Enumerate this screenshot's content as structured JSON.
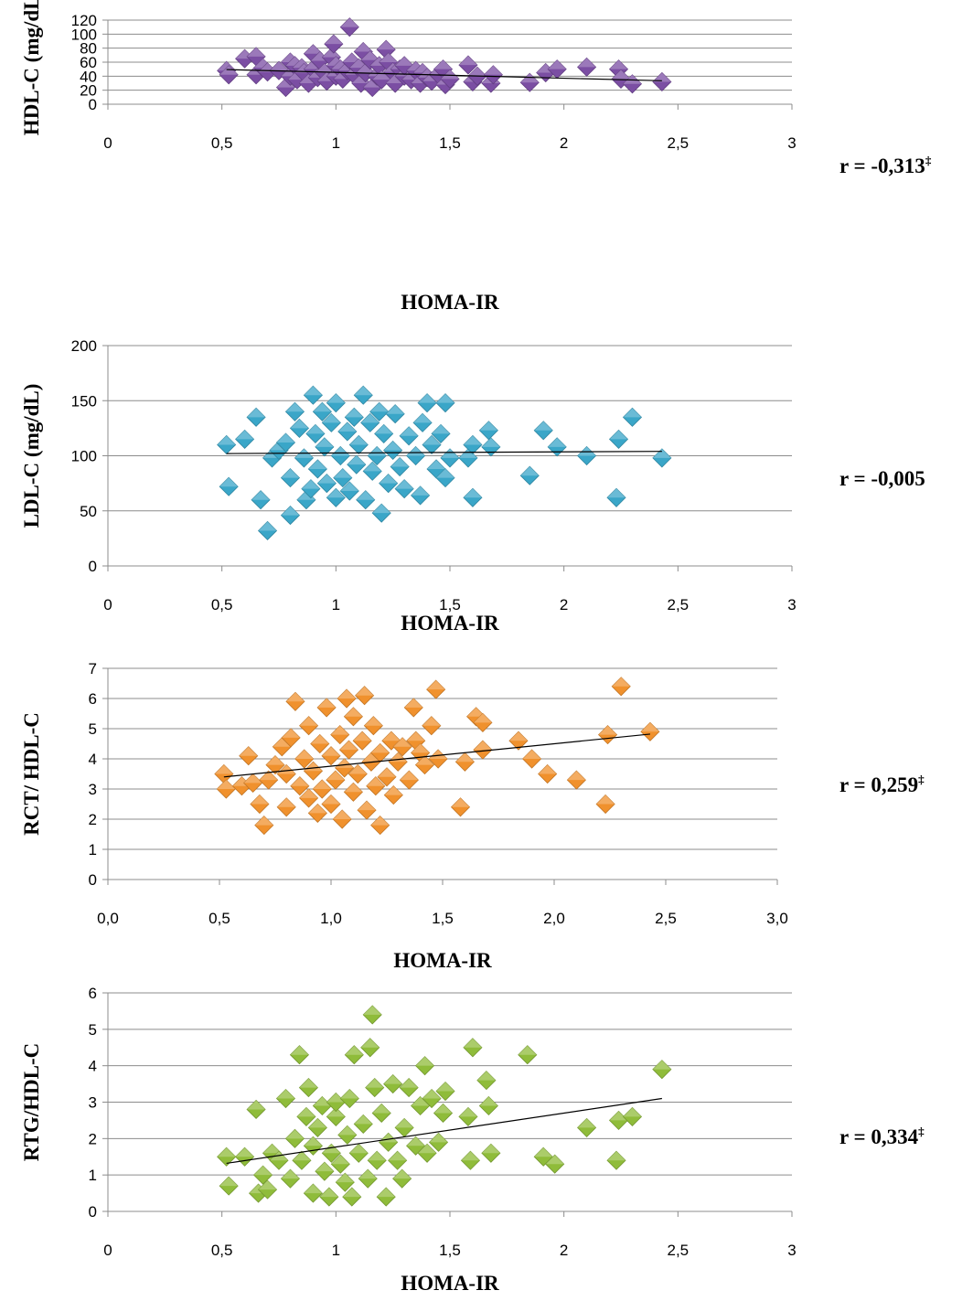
{
  "chart_data": [
    {
      "type": "scatter",
      "xlabel": "HOMA-IR",
      "ylabel": "HDL-C (mg/dL)",
      "xlim": [
        0,
        3
      ],
      "ylim": [
        0,
        120
      ],
      "x_ticks": [
        "0",
        "0,5",
        "1",
        "1,5",
        "2",
        "2,5",
        "3"
      ],
      "y_ticks": [
        "0",
        "20",
        "40",
        "60",
        "80",
        "100",
        "120"
      ],
      "grid": "horizontal",
      "color": "#7b4ea3",
      "trendline": {
        "x": [
          0.52,
          2.43
        ],
        "y": [
          49.5,
          33.5
        ]
      },
      "annotation": {
        "text": "r = -0,313",
        "mark": "‡"
      },
      "points": [
        [
          0.52,
          48
        ],
        [
          0.53,
          42
        ],
        [
          0.6,
          65
        ],
        [
          0.65,
          68
        ],
        [
          0.65,
          42
        ],
        [
          0.68,
          52
        ],
        [
          0.7,
          46
        ],
        [
          0.75,
          48
        ],
        [
          0.78,
          24
        ],
        [
          0.8,
          60
        ],
        [
          0.8,
          40
        ],
        [
          0.82,
          55
        ],
        [
          0.83,
          35
        ],
        [
          0.85,
          52
        ],
        [
          0.86,
          45
        ],
        [
          0.88,
          30
        ],
        [
          0.9,
          72
        ],
        [
          0.9,
          50
        ],
        [
          0.92,
          38
        ],
        [
          0.93,
          62
        ],
        [
          0.95,
          45
        ],
        [
          0.96,
          33
        ],
        [
          0.98,
          67
        ],
        [
          0.99,
          86
        ],
        [
          1.0,
          55
        ],
        [
          1.0,
          40
        ],
        [
          1.02,
          50
        ],
        [
          1.03,
          36
        ],
        [
          1.05,
          48
        ],
        [
          1.06,
          110
        ],
        [
          1.07,
          60
        ],
        [
          1.08,
          42
        ],
        [
          1.1,
          52
        ],
        [
          1.11,
          30
        ],
        [
          1.12,
          75
        ],
        [
          1.13,
          45
        ],
        [
          1.15,
          63
        ],
        [
          1.16,
          24
        ],
        [
          1.18,
          40
        ],
        [
          1.19,
          55
        ],
        [
          1.2,
          35
        ],
        [
          1.22,
          78
        ],
        [
          1.23,
          60
        ],
        [
          1.25,
          46
        ],
        [
          1.26,
          30
        ],
        [
          1.28,
          50
        ],
        [
          1.3,
          40
        ],
        [
          1.3,
          55
        ],
        [
          1.33,
          35
        ],
        [
          1.35,
          48
        ],
        [
          1.37,
          30
        ],
        [
          1.38,
          45
        ],
        [
          1.4,
          38
        ],
        [
          1.42,
          33
        ],
        [
          1.45,
          42
        ],
        [
          1.47,
          50
        ],
        [
          1.48,
          28
        ],
        [
          1.5,
          36
        ],
        [
          1.58,
          56
        ],
        [
          1.6,
          32
        ],
        [
          1.62,
          40
        ],
        [
          1.68,
          30
        ],
        [
          1.69,
          42
        ],
        [
          1.85,
          31
        ],
        [
          1.92,
          45
        ],
        [
          1.97,
          50
        ],
        [
          2.1,
          53
        ],
        [
          2.24,
          50
        ],
        [
          2.25,
          36
        ],
        [
          2.3,
          29
        ],
        [
          2.43,
          32
        ]
      ]
    },
    {
      "type": "scatter",
      "xlabel": "HOMA-IR",
      "ylabel": "LDL-C (mg/dL)",
      "xlim": [
        0,
        3
      ],
      "ylim": [
        0,
        200
      ],
      "x_ticks": [
        "0",
        "0,5",
        "1",
        "1,5",
        "2",
        "2,5",
        "3"
      ],
      "y_ticks": [
        "0",
        "50",
        "100",
        "150",
        "200"
      ],
      "grid": "horizontal",
      "color": "#3aa6c8",
      "trendline": {
        "x": [
          0.52,
          2.43
        ],
        "y": [
          102,
          104
        ]
      },
      "annotation": {
        "text": "r = -0,005",
        "mark": ""
      },
      "points": [
        [
          0.52,
          110
        ],
        [
          0.53,
          72
        ],
        [
          0.6,
          115
        ],
        [
          0.65,
          135
        ],
        [
          0.67,
          60
        ],
        [
          0.7,
          32
        ],
        [
          0.72,
          98
        ],
        [
          0.75,
          105
        ],
        [
          0.78,
          112
        ],
        [
          0.8,
          46
        ],
        [
          0.8,
          80
        ],
        [
          0.82,
          140
        ],
        [
          0.84,
          125
        ],
        [
          0.86,
          98
        ],
        [
          0.87,
          60
        ],
        [
          0.89,
          70
        ],
        [
          0.9,
          155
        ],
        [
          0.91,
          120
        ],
        [
          0.92,
          88
        ],
        [
          0.94,
          140
        ],
        [
          0.95,
          108
        ],
        [
          0.96,
          75
        ],
        [
          0.98,
          130
        ],
        [
          1.0,
          62
        ],
        [
          1.0,
          148
        ],
        [
          1.02,
          100
        ],
        [
          1.03,
          80
        ],
        [
          1.05,
          122
        ],
        [
          1.06,
          68
        ],
        [
          1.08,
          135
        ],
        [
          1.09,
          92
        ],
        [
          1.1,
          110
        ],
        [
          1.12,
          155
        ],
        [
          1.13,
          60
        ],
        [
          1.15,
          130
        ],
        [
          1.16,
          86
        ],
        [
          1.18,
          100
        ],
        [
          1.19,
          140
        ],
        [
          1.2,
          48
        ],
        [
          1.21,
          120
        ],
        [
          1.23,
          75
        ],
        [
          1.25,
          105
        ],
        [
          1.26,
          138
        ],
        [
          1.28,
          90
        ],
        [
          1.3,
          70
        ],
        [
          1.32,
          118
        ],
        [
          1.35,
          100
        ],
        [
          1.37,
          64
        ],
        [
          1.38,
          130
        ],
        [
          1.4,
          148
        ],
        [
          1.42,
          110
        ],
        [
          1.44,
          88
        ],
        [
          1.46,
          120
        ],
        [
          1.48,
          80
        ],
        [
          1.48,
          148
        ],
        [
          1.5,
          98
        ],
        [
          1.58,
          98
        ],
        [
          1.6,
          62
        ],
        [
          1.6,
          110
        ],
        [
          1.67,
          123
        ],
        [
          1.68,
          108
        ],
        [
          1.85,
          82
        ],
        [
          1.91,
          123
        ],
        [
          1.97,
          108
        ],
        [
          2.1,
          100
        ],
        [
          2.23,
          62
        ],
        [
          2.24,
          115
        ],
        [
          2.3,
          135
        ],
        [
          2.43,
          98
        ]
      ]
    },
    {
      "type": "scatter",
      "xlabel": "HOMA-IR",
      "ylabel": "RCT/ HDL-C",
      "xlim": [
        0,
        3
      ],
      "ylim": [
        0,
        7
      ],
      "x_ticks": [
        "0,0",
        "0,5",
        "1,0",
        "1,5",
        "2,0",
        "2,5",
        "3,0"
      ],
      "y_ticks": [
        "0",
        "1",
        "2",
        "3",
        "4",
        "5",
        "6",
        "7"
      ],
      "grid": "horizontal",
      "color": "#f0912d",
      "trendline": {
        "x": [
          0.52,
          2.43
        ],
        "y": [
          3.4,
          4.82
        ]
      },
      "annotation": {
        "text": "r = 0,259",
        "mark": "‡"
      },
      "points": [
        [
          0.52,
          3.5
        ],
        [
          0.53,
          3.0
        ],
        [
          0.6,
          3.1
        ],
        [
          0.63,
          4.1
        ],
        [
          0.65,
          3.2
        ],
        [
          0.68,
          2.5
        ],
        [
          0.7,
          1.8
        ],
        [
          0.72,
          3.3
        ],
        [
          0.75,
          3.8
        ],
        [
          0.78,
          4.4
        ],
        [
          0.8,
          2.4
        ],
        [
          0.8,
          3.5
        ],
        [
          0.82,
          4.7
        ],
        [
          0.84,
          5.9
        ],
        [
          0.86,
          3.1
        ],
        [
          0.88,
          4.0
        ],
        [
          0.9,
          2.7
        ],
        [
          0.9,
          5.1
        ],
        [
          0.92,
          3.6
        ],
        [
          0.94,
          2.2
        ],
        [
          0.95,
          4.5
        ],
        [
          0.96,
          3.0
        ],
        [
          0.98,
          5.7
        ],
        [
          1.0,
          2.5
        ],
        [
          1.0,
          4.1
        ],
        [
          1.02,
          3.3
        ],
        [
          1.04,
          4.8
        ],
        [
          1.05,
          2.0
        ],
        [
          1.06,
          3.7
        ],
        [
          1.07,
          6.0
        ],
        [
          1.08,
          4.3
        ],
        [
          1.1,
          2.9
        ],
        [
          1.1,
          5.4
        ],
        [
          1.12,
          3.5
        ],
        [
          1.14,
          4.6
        ],
        [
          1.15,
          6.1
        ],
        [
          1.16,
          2.3
        ],
        [
          1.18,
          3.9
        ],
        [
          1.19,
          5.1
        ],
        [
          1.2,
          3.1
        ],
        [
          1.22,
          1.8
        ],
        [
          1.22,
          4.2
        ],
        [
          1.25,
          3.4
        ],
        [
          1.27,
          4.6
        ],
        [
          1.28,
          2.8
        ],
        [
          1.3,
          3.9
        ],
        [
          1.32,
          4.4
        ],
        [
          1.35,
          3.3
        ],
        [
          1.37,
          5.7
        ],
        [
          1.38,
          4.6
        ],
        [
          1.4,
          4.2
        ],
        [
          1.42,
          3.8
        ],
        [
          1.45,
          5.1
        ],
        [
          1.47,
          6.3
        ],
        [
          1.48,
          4.0
        ],
        [
          1.58,
          2.4
        ],
        [
          1.6,
          3.9
        ],
        [
          1.65,
          5.4
        ],
        [
          1.68,
          5.2
        ],
        [
          1.68,
          4.3
        ],
        [
          1.84,
          4.6
        ],
        [
          1.9,
          4.0
        ],
        [
          1.97,
          3.5
        ],
        [
          2.1,
          3.3
        ],
        [
          2.23,
          2.5
        ],
        [
          2.24,
          4.8
        ],
        [
          2.3,
          6.4
        ],
        [
          2.43,
          4.9
        ]
      ]
    },
    {
      "type": "scatter",
      "xlabel": "HOMA-IR",
      "ylabel": "RTG/HDL-C",
      "xlim": [
        0,
        3
      ],
      "ylim": [
        0,
        6
      ],
      "x_ticks": [
        "0",
        "0,5",
        "1",
        "1,5",
        "2",
        "2,5",
        "3"
      ],
      "y_ticks": [
        "0",
        "1",
        "2",
        "3",
        "4",
        "5",
        "6"
      ],
      "grid": "horizontal",
      "color": "#8fbc3a",
      "trendline": {
        "x": [
          0.52,
          2.43
        ],
        "y": [
          1.32,
          3.1
        ]
      },
      "annotation": {
        "text": "r = 0,334",
        "mark": "‡"
      },
      "points": [
        [
          0.52,
          1.5
        ],
        [
          0.53,
          0.7
        ],
        [
          0.6,
          1.5
        ],
        [
          0.65,
          2.8
        ],
        [
          0.66,
          0.5
        ],
        [
          0.68,
          1.0
        ],
        [
          0.7,
          0.6
        ],
        [
          0.72,
          1.6
        ],
        [
          0.75,
          1.4
        ],
        [
          0.78,
          3.1
        ],
        [
          0.8,
          0.9
        ],
        [
          0.82,
          2.0
        ],
        [
          0.84,
          4.3
        ],
        [
          0.85,
          1.4
        ],
        [
          0.87,
          2.6
        ],
        [
          0.88,
          3.4
        ],
        [
          0.9,
          0.5
        ],
        [
          0.9,
          1.8
        ],
        [
          0.92,
          2.3
        ],
        [
          0.94,
          2.9
        ],
        [
          0.95,
          1.1
        ],
        [
          0.97,
          0.4
        ],
        [
          0.98,
          1.6
        ],
        [
          1.0,
          2.6
        ],
        [
          1.0,
          3.0
        ],
        [
          1.02,
          1.3
        ],
        [
          1.04,
          0.8
        ],
        [
          1.05,
          2.1
        ],
        [
          1.06,
          3.1
        ],
        [
          1.07,
          0.4
        ],
        [
          1.08,
          4.3
        ],
        [
          1.1,
          1.6
        ],
        [
          1.12,
          2.4
        ],
        [
          1.14,
          0.9
        ],
        [
          1.15,
          4.5
        ],
        [
          1.16,
          5.4
        ],
        [
          1.17,
          3.4
        ],
        [
          1.18,
          1.4
        ],
        [
          1.2,
          2.7
        ],
        [
          1.22,
          0.4
        ],
        [
          1.23,
          1.9
        ],
        [
          1.25,
          3.5
        ],
        [
          1.27,
          1.4
        ],
        [
          1.29,
          0.9
        ],
        [
          1.3,
          2.3
        ],
        [
          1.32,
          3.4
        ],
        [
          1.35,
          1.8
        ],
        [
          1.37,
          2.9
        ],
        [
          1.39,
          4.0
        ],
        [
          1.4,
          1.6
        ],
        [
          1.42,
          3.1
        ],
        [
          1.45,
          1.9
        ],
        [
          1.47,
          2.7
        ],
        [
          1.48,
          3.3
        ],
        [
          1.58,
          2.6
        ],
        [
          1.59,
          1.4
        ],
        [
          1.6,
          4.5
        ],
        [
          1.66,
          3.6
        ],
        [
          1.67,
          2.9
        ],
        [
          1.68,
          1.6
        ],
        [
          1.84,
          4.3
        ],
        [
          1.91,
          1.5
        ],
        [
          1.96,
          1.3
        ],
        [
          2.1,
          2.3
        ],
        [
          2.23,
          1.4
        ],
        [
          2.24,
          2.5
        ],
        [
          2.3,
          2.6
        ],
        [
          2.43,
          3.9
        ]
      ]
    }
  ]
}
